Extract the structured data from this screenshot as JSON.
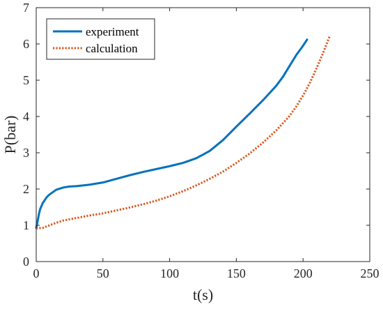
{
  "chart_data": {
    "type": "line",
    "xlabel": "t(s)",
    "ylabel": "P(bar)",
    "xlim": [
      0,
      250
    ],
    "ylim": [
      0,
      7
    ],
    "xticks": [
      0,
      50,
      100,
      150,
      200,
      250
    ],
    "yticks": [
      0,
      1,
      2,
      3,
      4,
      5,
      6,
      7
    ],
    "grid": false,
    "box": true,
    "legend_placement": "top-left",
    "series": [
      {
        "name": "experiment",
        "style": "solid",
        "color": "#0072BD",
        "x": [
          0,
          1,
          2,
          3,
          5,
          8,
          10,
          15,
          20,
          25,
          30,
          40,
          50,
          60,
          70,
          80,
          90,
          100,
          110,
          120,
          130,
          140,
          150,
          160,
          170,
          180,
          185,
          190,
          195,
          200,
          203
        ],
        "y": [
          0.93,
          1.1,
          1.3,
          1.45,
          1.62,
          1.78,
          1.85,
          1.98,
          2.04,
          2.07,
          2.08,
          2.12,
          2.18,
          2.28,
          2.38,
          2.47,
          2.55,
          2.63,
          2.72,
          2.85,
          3.05,
          3.35,
          3.72,
          4.08,
          4.45,
          4.85,
          5.1,
          5.4,
          5.7,
          5.95,
          6.12
        ]
      },
      {
        "name": "calculation",
        "style": "dotted",
        "color": "#D95319",
        "x": [
          0,
          5,
          10,
          15,
          20,
          30,
          40,
          50,
          60,
          70,
          80,
          90,
          100,
          110,
          120,
          130,
          140,
          150,
          160,
          170,
          180,
          190,
          195,
          200,
          205,
          210,
          215,
          220
        ],
        "y": [
          0.92,
          0.93,
          1.0,
          1.07,
          1.13,
          1.2,
          1.27,
          1.33,
          1.41,
          1.49,
          1.58,
          1.68,
          1.8,
          1.94,
          2.1,
          2.28,
          2.48,
          2.72,
          2.98,
          3.28,
          3.62,
          4.02,
          4.28,
          4.58,
          4.92,
          5.32,
          5.75,
          6.22
        ]
      }
    ]
  }
}
